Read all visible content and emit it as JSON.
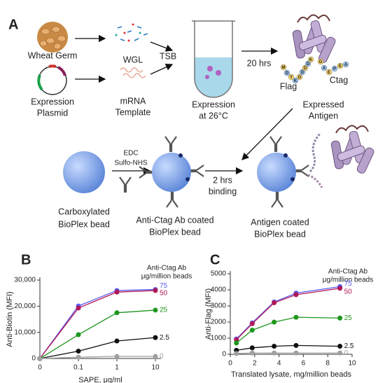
{
  "diagram": {
    "panel": "A",
    "wheat_germ": "Wheat Germ",
    "plasmid": [
      "Expression",
      "Plasmid"
    ],
    "wgl": "WGL",
    "mrna": [
      "mRNA",
      "Template"
    ],
    "tsb": "TSB",
    "expression": [
      "Expression",
      "at 26°C"
    ],
    "time1": "20 hrs",
    "flag": "Flag",
    "ctag": "Ctag",
    "flag_residues": [
      "M",
      "D",
      "Y",
      "K",
      "D",
      "D",
      "D",
      "D",
      "K"
    ],
    "ctag_residues": [
      "G",
      "A",
      "E",
      "P",
      "E",
      "A"
    ],
    "antigen": [
      "Expressed",
      "Antigen"
    ],
    "reagents": [
      "EDC",
      "Sulfo-NHS"
    ],
    "bead1": [
      "Carboxylated",
      "BioPlex bead"
    ],
    "bead2": [
      "Anti-Ctag Ab coated",
      "BioPlex bead"
    ],
    "time2": [
      "2 hrs",
      "binding"
    ],
    "bead3": [
      "Antigen coated",
      "BioPlex bead"
    ]
  },
  "chart_data": [
    {
      "type": "line",
      "panel": "B",
      "x_label": "SAPE, μg/ml",
      "y_label": "Anti-Biotin (MFI)",
      "legend_title": [
        "Anti-Ctag Ab",
        "μg/million beads"
      ],
      "categories": [
        "0",
        "0.1",
        "1",
        "10"
      ],
      "ylim": [
        0,
        30000
      ],
      "yticks": [
        0,
        {
          "value": 10000,
          "label": "10,000"
        },
        {
          "value": 20000,
          "label": "20,000"
        },
        {
          "value": 30000,
          "label": "30,000"
        }
      ],
      "series": [
        {
          "name": "75",
          "color": "#5a5af0",
          "values": [
            0,
            20100,
            26000,
            26400
          ]
        },
        {
          "name": "50",
          "color": "#b01858",
          "values": [
            0,
            19300,
            25400,
            26000
          ]
        },
        {
          "name": "25",
          "color": "#1e961e",
          "values": [
            0,
            9100,
            17500,
            18500
          ]
        },
        {
          "name": "2.5",
          "color": "#111111",
          "values": [
            0,
            2800,
            6700,
            8000
          ]
        },
        {
          "name": "0",
          "color": "#a0a0a0",
          "values": [
            0,
            500,
            800,
            800
          ]
        }
      ]
    },
    {
      "type": "line",
      "panel": "C",
      "x_label": "Translated lysate, mg/million beads",
      "y_label": "Anti-Flag (MFI)",
      "legend_title": [
        "Anti-Ctag Ab",
        "μg/million beads"
      ],
      "x": [
        0.5,
        1.8,
        3.6,
        5.4,
        9.0
      ],
      "xlim": [
        0,
        10
      ],
      "xticks": [
        0,
        2,
        4,
        6,
        8,
        10
      ],
      "ylim": [
        0,
        5000
      ],
      "yticks": [
        0,
        1000,
        2000,
        3000,
        4000,
        5000
      ],
      "series": [
        {
          "name": "75",
          "color": "#5a5af0",
          "values": [
            950,
            1950,
            3250,
            3800,
            4200
          ]
        },
        {
          "name": "50",
          "color": "#b01858",
          "values": [
            900,
            1900,
            3200,
            3700,
            4100
          ]
        },
        {
          "name": "25",
          "color": "#1e961e",
          "values": [
            700,
            1500,
            2000,
            2300,
            2250
          ]
        },
        {
          "name": "2.5",
          "color": "#111111",
          "values": [
            250,
            400,
            500,
            550,
            500
          ]
        },
        {
          "name": "0",
          "color": "#a0a0a0",
          "values": [
            50,
            80,
            80,
            80,
            80
          ]
        }
      ]
    }
  ]
}
